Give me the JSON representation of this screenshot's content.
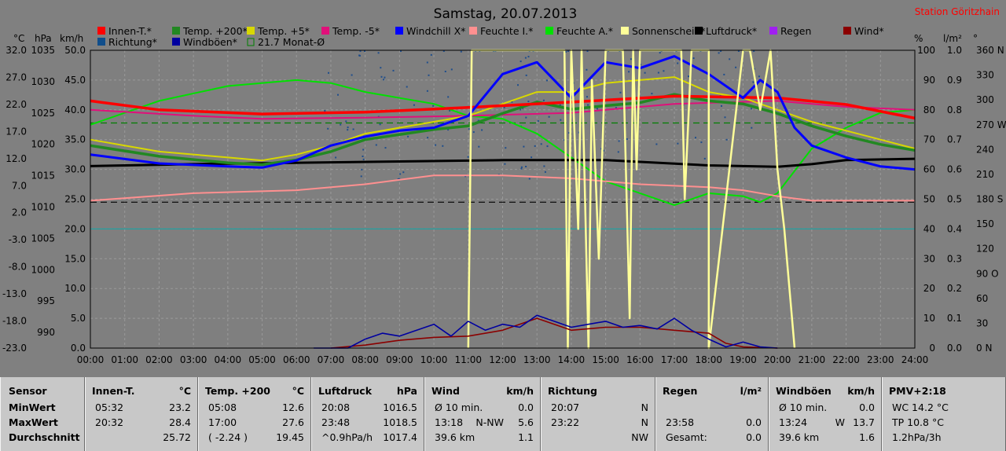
{
  "title": "Samstag, 20.07.2013",
  "station": "Station Göritzhain",
  "axis_units": {
    "left1": "°C",
    "left2": "hPa",
    "left3": "km/h",
    "right1": "%",
    "right2": "l/m²",
    "right3": "°"
  },
  "legend": [
    {
      "label": "Innen-T.*",
      "color": "#ff0000"
    },
    {
      "label": "Temp. +200*",
      "color": "#228822"
    },
    {
      "label": "Temp. +5*",
      "color": "#d8d800"
    },
    {
      "label": "Temp. -5*",
      "color": "#e0107a"
    },
    {
      "label": "Windchill X*",
      "color": "#0000ff"
    },
    {
      "label": "Feuchte I.*",
      "color": "#ff9090"
    },
    {
      "label": "Feuchte A.*",
      "color": "#00e000"
    },
    {
      "label": "Sonnenschein*",
      "color": "#ffff99"
    },
    {
      "label": "Luftdruck*",
      "color": "#000000"
    },
    {
      "label": "Regen",
      "color": "#a020f0"
    },
    {
      "label": "Wind*",
      "color": "#8b0000"
    },
    {
      "label": "Richtung*",
      "color": "#104e8b"
    },
    {
      "label": "Windböen*",
      "color": "#0000a0"
    },
    {
      "label": "21.7 Monat-Ø",
      "color": "#008000"
    }
  ],
  "chart_data": {
    "type": "line",
    "x_ticks": [
      "00:00",
      "01:00",
      "02:00",
      "03:00",
      "04:00",
      "05:00",
      "06:00",
      "07:00",
      "08:00",
      "09:00",
      "10:00",
      "11:00",
      "12:00",
      "13:00",
      "14:00",
      "15:00",
      "16:00",
      "17:00",
      "18:00",
      "19:00",
      "20:00",
      "21:00",
      "22:00",
      "23:00",
      "24:00"
    ],
    "y_axes": {
      "celsius": [
        "32.0",
        "27.0",
        "22.0",
        "17.0",
        "12.0",
        "7.0",
        "2.0",
        "-3.0",
        "-8.0",
        "-13.0",
        "-18.0",
        "-23.0"
      ],
      "hpa": [
        "1035",
        "1030",
        "1025",
        "1020",
        "1015",
        "1010",
        "1005",
        "1000",
        "995",
        "990"
      ],
      "kmh": [
        "50.0",
        "45.0",
        "40.0",
        "35.0",
        "30.0",
        "25.0",
        "20.0",
        "15.0",
        "10.0",
        "5.0",
        "0.0"
      ],
      "percent": [
        "100",
        "90",
        "80",
        "70",
        "60",
        "50",
        "40",
        "30",
        "20",
        "10",
        "0"
      ],
      "rain": [
        "1.0",
        "0.9",
        "0.8",
        "0.7",
        "0.6",
        "0.5",
        "0.4",
        "0.3",
        "0.2",
        "0.1",
        "0.0"
      ],
      "degrees": [
        "360 N",
        "330",
        "300",
        "270 W",
        "240",
        "210",
        "180 S",
        "150",
        "120",
        "90 O",
        "60",
        "30",
        "0 N"
      ]
    },
    "series": [
      {
        "name": "Innen-T.*",
        "unit": "kmh",
        "x": [
          0,
          2,
          5,
          8,
          11,
          14,
          17,
          20,
          22,
          24
        ],
        "y": [
          41.5,
          40,
          39.3,
          39.6,
          40.4,
          41.3,
          42.3,
          42,
          40.9,
          38.6
        ]
      },
      {
        "name": "Temp. +200*",
        "unit": "kmh",
        "x": [
          0,
          2,
          4,
          5,
          6,
          7,
          8,
          10,
          11,
          12,
          13,
          14,
          15,
          16,
          17,
          18,
          19,
          20,
          21,
          22,
          23,
          24
        ],
        "y": [
          34,
          32.2,
          31.1,
          30.8,
          31.6,
          33,
          35,
          36.7,
          37.3,
          39.4,
          41.3,
          40.1,
          40.7,
          41.2,
          42.6,
          41.5,
          41,
          39.4,
          37.3,
          35.6,
          34.2,
          33.2
        ]
      },
      {
        "name": "Temp. +5*",
        "unit": "kmh",
        "x": [
          0,
          2,
          4,
          5,
          6,
          7,
          8,
          10,
          11,
          12,
          13,
          14,
          15,
          16,
          17,
          18,
          19,
          20,
          21,
          22,
          23,
          24
        ],
        "y": [
          35,
          33,
          32,
          31.5,
          32.5,
          34,
          36,
          38,
          39,
          41,
          43,
          43,
          44.5,
          45,
          45.5,
          43,
          42,
          40,
          38,
          36.5,
          35,
          33.5
        ]
      },
      {
        "name": "Temp. -5*",
        "unit": "kmh",
        "x": [
          0,
          3,
          5,
          8,
          11,
          14,
          17,
          20,
          22,
          24
        ],
        "y": [
          40,
          39,
          38.5,
          38.7,
          39,
          39.5,
          41,
          41.5,
          40.5,
          40
        ]
      },
      {
        "name": "Windchill X*",
        "unit": "kmh",
        "x": [
          0,
          2,
          4,
          5,
          6,
          7,
          8,
          9,
          10,
          11,
          12,
          13,
          14,
          15,
          16,
          17,
          18,
          19,
          19.5,
          20,
          20.5,
          21,
          22,
          23,
          24
        ],
        "y": [
          32.5,
          31,
          30.5,
          30.3,
          31.5,
          34,
          35.5,
          36.5,
          37,
          39,
          46,
          48,
          42,
          48,
          47,
          49,
          46,
          42,
          45,
          43,
          37,
          34,
          32,
          30.5,
          30
        ]
      },
      {
        "name": "Feuchte I.*",
        "unit": "percent",
        "x": [
          0,
          3,
          6,
          8,
          10,
          12,
          14,
          16,
          18,
          19,
          20,
          21,
          24
        ],
        "y": [
          49.5,
          52,
          53,
          55,
          58,
          58,
          57,
          55,
          54,
          53,
          51,
          49.5,
          49.5
        ]
      },
      {
        "name": "Feuchte A.*",
        "unit": "percent",
        "x": [
          0,
          2,
          4,
          6,
          7,
          8,
          10,
          11,
          12,
          13,
          14,
          15,
          16,
          17,
          18,
          19,
          19.5,
          20,
          21,
          22,
          23,
          24
        ],
        "y": [
          75,
          83,
          88,
          90,
          89,
          86,
          82,
          78,
          77,
          72,
          64,
          56,
          52,
          48,
          52,
          51,
          49,
          52,
          67,
          74,
          79,
          80
        ]
      },
      {
        "name": "Luftdruck*",
        "unit": "hpa",
        "x": [
          0,
          3,
          6,
          9,
          12,
          15,
          18,
          20,
          21,
          22,
          24
        ],
        "y": [
          1017.5,
          1017.8,
          1018,
          1018.2,
          1018.4,
          1018.4,
          1017.6,
          1017.4,
          1017.8,
          1018.4,
          1018.6
        ]
      },
      {
        "name": "Wind*",
        "unit": "kmh",
        "x": [
          7,
          8,
          9,
          10,
          11,
          12,
          13,
          14,
          15,
          16,
          17,
          18,
          18.5,
          19,
          20
        ],
        "y": [
          0,
          0.5,
          1.3,
          1.8,
          2,
          3,
          5,
          3,
          3.5,
          3.5,
          3,
          2.5,
          0.8,
          0.2,
          0
        ]
      },
      {
        "name": "Windböen*",
        "unit": "kmh",
        "x": [
          6.5,
          7.5,
          8,
          8.5,
          9,
          9.5,
          10,
          10.5,
          11,
          11.5,
          12,
          12.5,
          13,
          13.5,
          14,
          14.5,
          15,
          15.5,
          16,
          16.5,
          17,
          17.5,
          18,
          18.5,
          19,
          19.5,
          20
        ],
        "y": [
          0,
          0,
          1.5,
          2.5,
          2,
          3,
          4,
          2,
          4.5,
          3,
          4,
          3.5,
          5.5,
          4.5,
          3.5,
          4,
          4.5,
          3.5,
          3.8,
          3.2,
          5,
          3,
          1.5,
          0.2,
          1,
          0.2,
          0
        ]
      },
      {
        "name": "Sonnenschein*",
        "unit": "percent",
        "x": [
          11,
          11.1,
          13.8,
          13.9,
          14,
          14.2,
          14.3,
          14.5,
          14.6,
          14.8,
          15,
          15.5,
          15.7,
          15.8,
          15.9,
          16,
          17.2,
          17.3,
          17.5,
          18,
          18,
          19,
          19.2,
          19.5,
          19.8,
          20,
          20.2,
          20.5
        ],
        "y": [
          0,
          100,
          100,
          0,
          100,
          40,
          100,
          0,
          90,
          30,
          100,
          100,
          10,
          100,
          60,
          100,
          100,
          50,
          100,
          100,
          0,
          100,
          100,
          80,
          100,
          60,
          40,
          0
        ]
      }
    ],
    "reference_lines": [
      {
        "name": "21.7 Monat-Ø",
        "unit": "kmh",
        "value": 37.8,
        "style": "dashed",
        "color": "#008000"
      },
      {
        "name": "",
        "unit": "kmh",
        "value": 24.5,
        "style": "dashed",
        "color": "#000000"
      },
      {
        "name": "",
        "unit": "kmh",
        "value": 20,
        "style": "solid",
        "color": "#20a0a0"
      }
    ]
  },
  "stats_rows": [
    "Sensor",
    "MinWert",
    "MaxWert",
    "Durchschnitt"
  ],
  "panels": [
    {
      "title": "Innen-T.",
      "unit": "°C",
      "rows": [
        [
          "05:32",
          "",
          "23.2"
        ],
        [
          "20:32",
          "",
          "28.4"
        ],
        [
          "",
          "",
          "25.72"
        ]
      ]
    },
    {
      "title": "Temp. +200",
      "unit": "°C",
      "rows": [
        [
          "05:08",
          "",
          "12.6"
        ],
        [
          "17:00",
          "",
          "27.6"
        ],
        [
          "( -2.24 )",
          "",
          "19.45"
        ]
      ]
    },
    {
      "title": "Luftdruck",
      "unit": "hPa",
      "rows": [
        [
          "20:08",
          "",
          "1016.5"
        ],
        [
          "23:48",
          "",
          "1018.5"
        ],
        [
          "^0.9hPa/h",
          "",
          "1017.4"
        ]
      ]
    },
    {
      "title": "Wind",
      "unit": "km/h",
      "rows": [
        [
          "Ø 10 min.",
          "",
          "0.0"
        ],
        [
          "13:18",
          "N-NW",
          "5.6"
        ],
        [
          "39.6 km",
          "",
          "1.1"
        ]
      ]
    },
    {
      "title": "Richtung",
      "unit": "",
      "rows": [
        [
          "20:07",
          "",
          "N"
        ],
        [
          "23:22",
          "",
          "N"
        ],
        [
          "",
          "",
          "NW"
        ]
      ]
    },
    {
      "title": "Regen",
      "unit": "l/m²",
      "rows": [
        [
          "",
          "",
          ""
        ],
        [
          "23:58",
          "",
          "0.0"
        ],
        [
          "Gesamt:",
          "",
          "0.0"
        ]
      ]
    },
    {
      "title": "Windböen",
      "unit": "km/h",
      "rows": [
        [
          "Ø 10 min.",
          "",
          "0.0"
        ],
        [
          "13:24",
          "W",
          "13.7"
        ],
        [
          "39.6 km",
          "",
          "1.6"
        ]
      ]
    },
    {
      "title": "PMV+2:18",
      "unit": "",
      "rows": [
        [
          "WC 14.2 °C",
          "",
          ""
        ],
        [
          "TP 10.8 °C",
          "",
          ""
        ],
        [
          "1.2hPa/3h",
          "",
          ""
        ]
      ]
    }
  ]
}
